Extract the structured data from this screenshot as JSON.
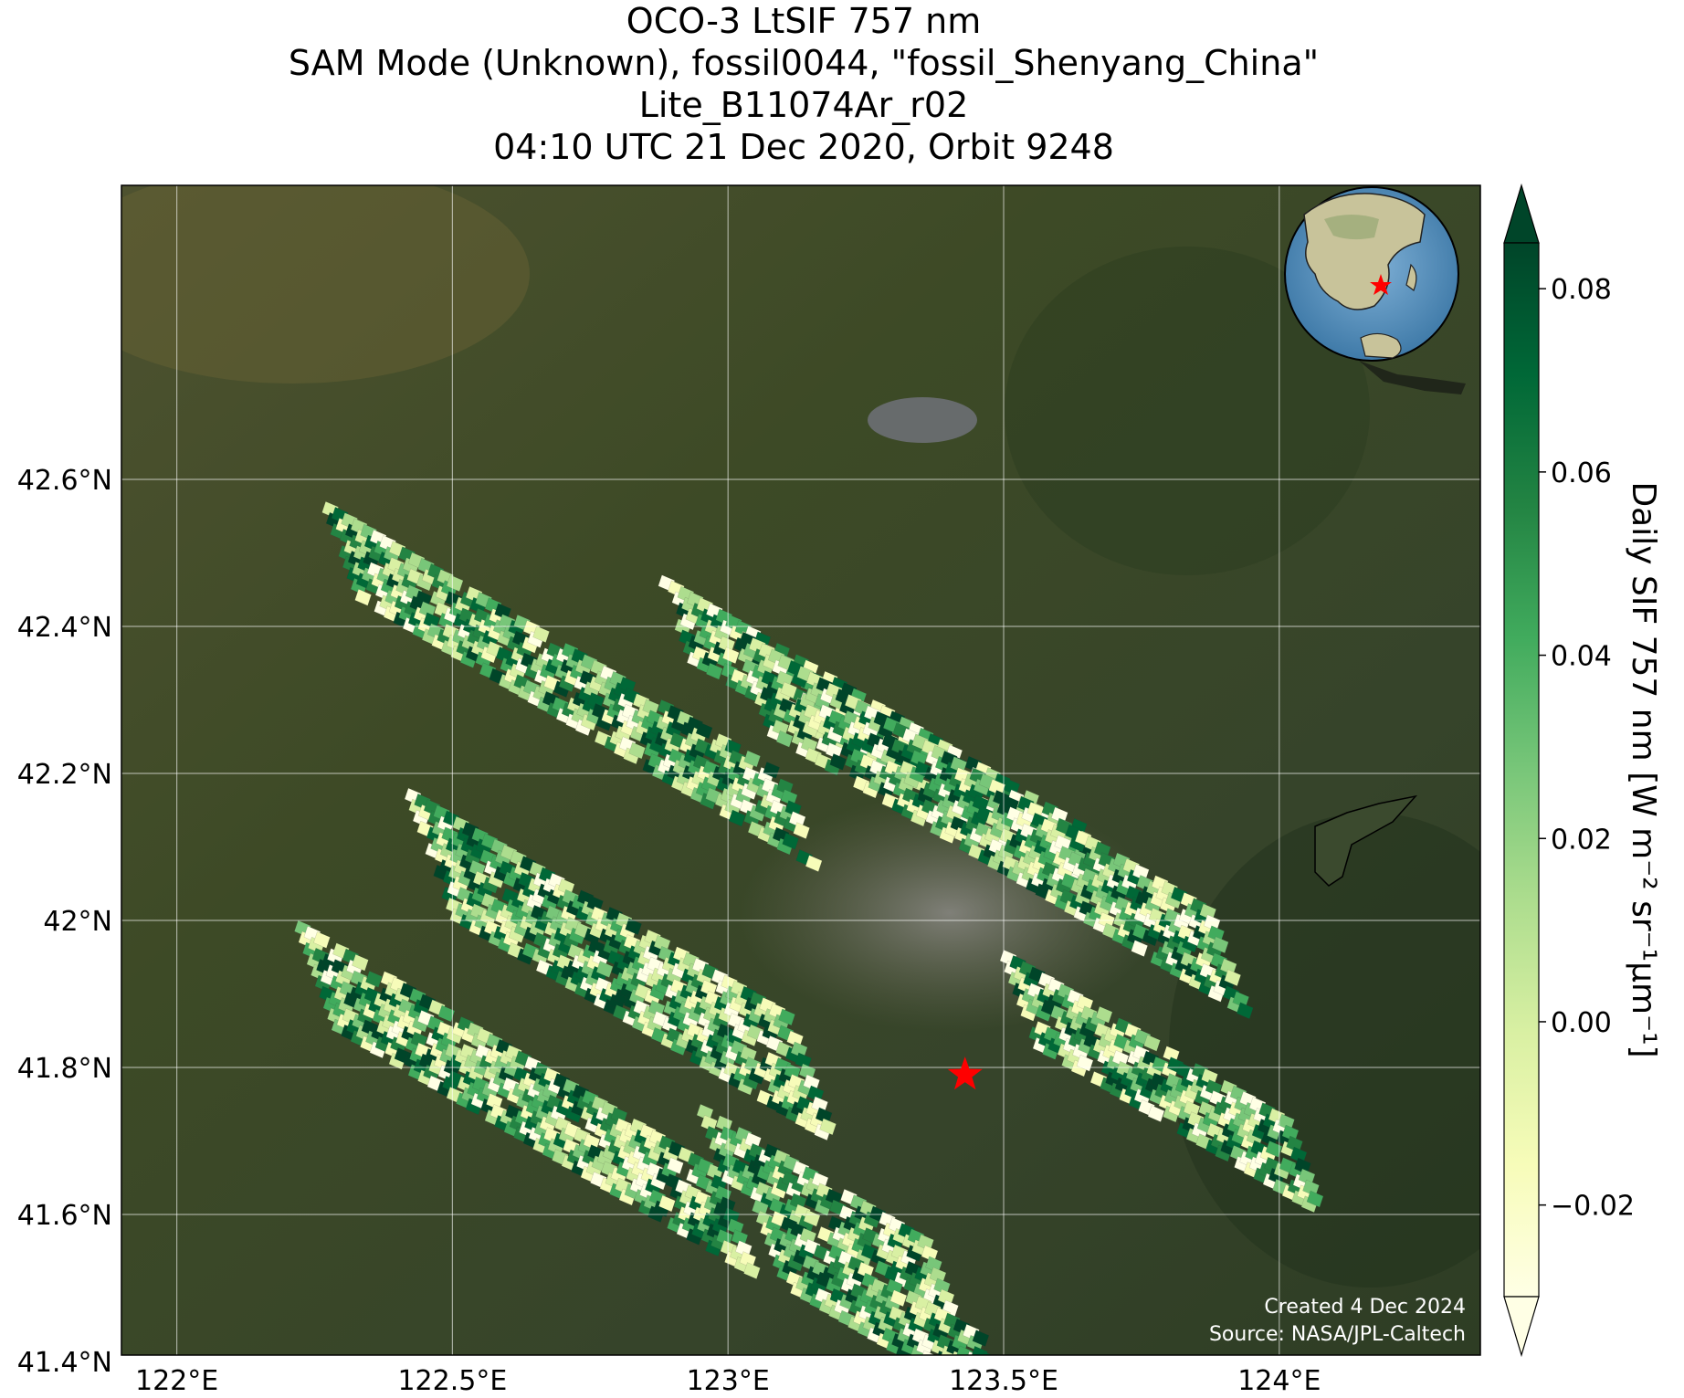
{
  "title_lines": [
    "OCO-3 LtSIF 757 nm",
    "SAM Mode (Unknown), fossil0044, \"fossil_Shenyang_China\"",
    "Lite_B11074Ar_r02",
    "04:10 UTC 21 Dec 2020, Orbit 9248"
  ],
  "map": {
    "lon_ticks": [
      {
        "value": 122.0,
        "label": "122°E"
      },
      {
        "value": 122.5,
        "label": "122.5°E"
      },
      {
        "value": 123.0,
        "label": "123°E"
      },
      {
        "value": 123.5,
        "label": "123.5°E"
      },
      {
        "value": 124.0,
        "label": "124°E"
      }
    ],
    "lat_ticks": [
      {
        "value": 41.4,
        "label": "41.4°N"
      },
      {
        "value": 41.6,
        "label": "41.6°N"
      },
      {
        "value": 41.8,
        "label": "41.8°N"
      },
      {
        "value": 42.0,
        "label": "42°N"
      },
      {
        "value": 42.2,
        "label": "42.2°N"
      },
      {
        "value": 42.4,
        "label": "42.4°N"
      },
      {
        "value": 42.6,
        "label": "42.6°N"
      }
    ],
    "lon_range": [
      121.9,
      124.4
    ],
    "lat_range": [
      41.2,
      42.8
    ],
    "grid": true,
    "target_marker": {
      "name": "fossil_Shenyang_China",
      "lon": 123.43,
      "lat": 41.79,
      "color": "#ff0000"
    },
    "basemap": "satellite imagery",
    "inset_globe": "orthographic globe centered on East Asia with red star at target"
  },
  "colorbar": {
    "label": "Daily SIF 757 nm [W m⁻² sr⁻¹μm⁻¹]",
    "min": -0.03,
    "max": 0.085,
    "extend": "both",
    "ticks": [
      {
        "value": -0.02,
        "label": "−0.02"
      },
      {
        "value": 0.0,
        "label": "0.00"
      },
      {
        "value": 0.02,
        "label": "0.02"
      },
      {
        "value": 0.04,
        "label": "0.04"
      },
      {
        "value": 0.06,
        "label": "0.06"
      },
      {
        "value": 0.08,
        "label": "0.08"
      }
    ],
    "colormap": "YlGn",
    "colors": [
      "#ffffe5",
      "#f7fcb9",
      "#d9f0a3",
      "#addd8e",
      "#78c679",
      "#41ab5d",
      "#238443",
      "#006837",
      "#004529"
    ]
  },
  "credits": {
    "created": "Created 4 Dec 2024",
    "source": "Source: NASA/JPL-Caltech"
  }
}
